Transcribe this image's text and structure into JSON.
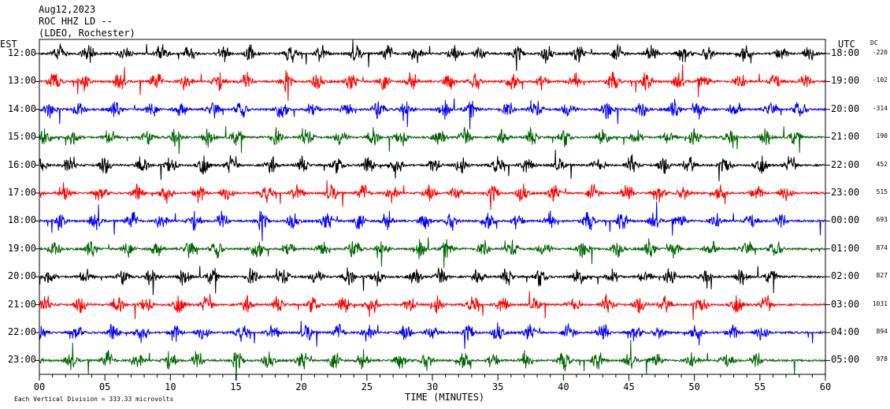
{
  "header": {
    "date": "Aug12,2023",
    "station": "ROC HHZ LD --",
    "location": "(LDEO, Rochester)"
  },
  "left_zone": "EST",
  "right_zone": "UTC",
  "dc_label": "DC",
  "footer": {
    "scale_note": "Each Vertical Division =  333.33 microvolts"
  },
  "colors": {
    "black": "#000000",
    "red": "#ff0000",
    "blue": "#0000ff",
    "green": "#006400"
  },
  "chart_data": {
    "type": "line",
    "title": "",
    "xlabel": "TIME (MINUTES)",
    "xlim": [
      0,
      60
    ],
    "x_ticks": [
      "00",
      "05",
      "10",
      "15",
      "20",
      "25",
      "30",
      "35",
      "40",
      "45",
      "50",
      "55",
      "60"
    ],
    "rows": [
      {
        "est": "12:00",
        "utc": "18:00",
        "dc": "-220",
        "color": "black"
      },
      {
        "est": "13:00",
        "utc": "19:00",
        "dc": "-102",
        "color": "red"
      },
      {
        "est": "14:00",
        "utc": "20:00",
        "dc": "-314",
        "color": "blue"
      },
      {
        "est": "15:00",
        "utc": "21:00",
        "dc": "190",
        "color": "green"
      },
      {
        "est": "16:00",
        "utc": "22:00",
        "dc": "452",
        "color": "black"
      },
      {
        "est": "17:00",
        "utc": "23:00",
        "dc": "515",
        "color": "red"
      },
      {
        "est": "18:00",
        "utc": "00:00",
        "dc": "693",
        "color": "blue"
      },
      {
        "est": "19:00",
        "utc": "01:00",
        "dc": "874",
        "color": "green"
      },
      {
        "est": "20:00",
        "utc": "02:00",
        "dc": "827",
        "color": "black"
      },
      {
        "est": "21:00",
        "utc": "03:00",
        "dc": "1031",
        "color": "red"
      },
      {
        "est": "22:00",
        "utc": "04:00",
        "dc": "894",
        "color": "blue"
      },
      {
        "est": "23:00",
        "utc": "05:00",
        "dc": "978",
        "color": "green"
      }
    ]
  }
}
